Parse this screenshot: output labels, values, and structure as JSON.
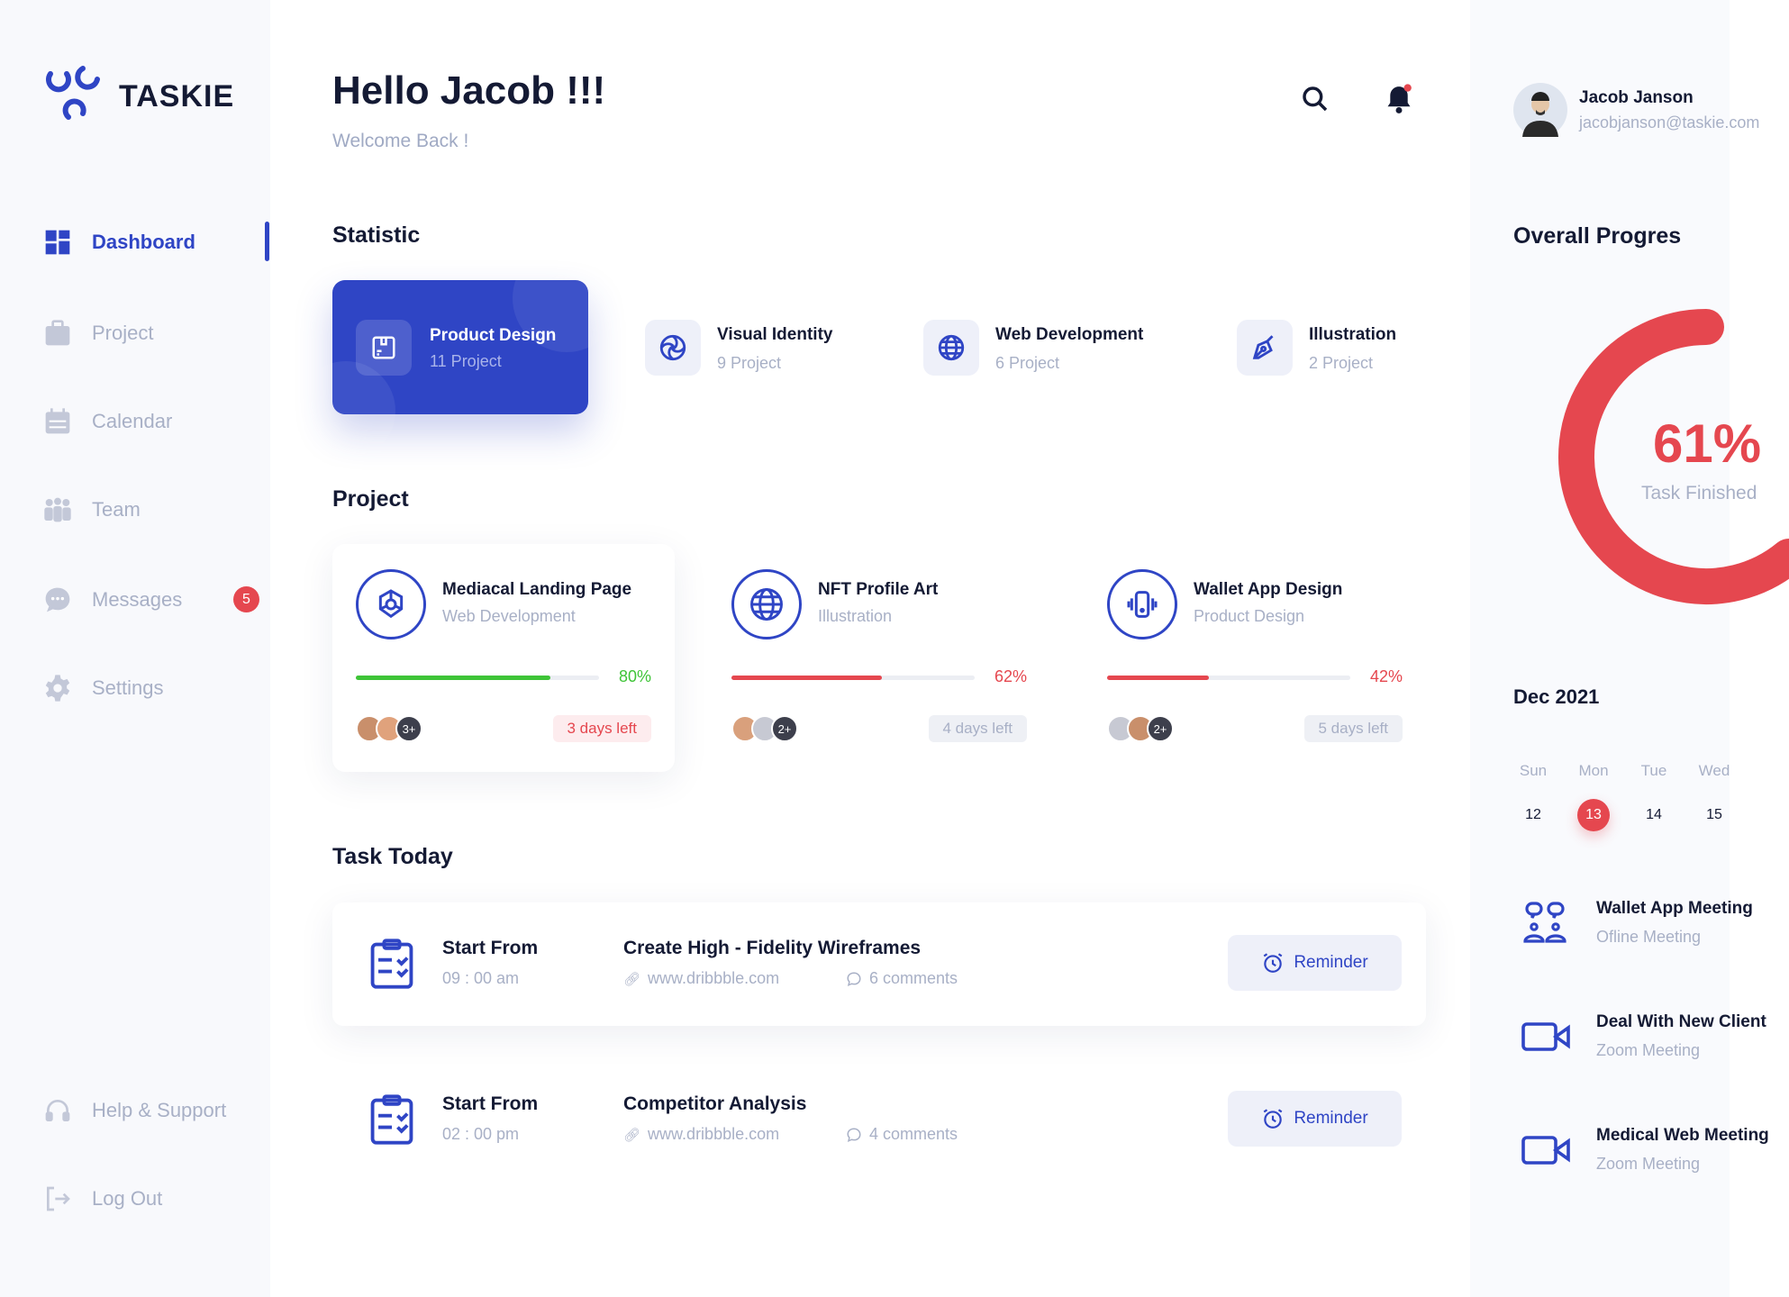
{
  "brand": {
    "name": "TASKIE",
    "accent": "#2f45c5"
  },
  "sidebar": {
    "items": [
      {
        "label": "Dashboard",
        "icon": "grid-icon",
        "active": true
      },
      {
        "label": "Project",
        "icon": "briefcase-icon"
      },
      {
        "label": "Calendar",
        "icon": "calendar-icon"
      },
      {
        "label": "Team",
        "icon": "team-icon"
      },
      {
        "label": "Messages",
        "icon": "chat-icon",
        "badge": "5"
      },
      {
        "label": "Settings",
        "icon": "gear-icon"
      }
    ],
    "bottom": [
      {
        "label": "Help & Support",
        "icon": "headset-icon"
      },
      {
        "label": "Log Out",
        "icon": "logout-icon"
      }
    ]
  },
  "header": {
    "title": "Hello Jacob !!!",
    "subtitle": "Welcome Back !"
  },
  "user": {
    "name": "Jacob Janson",
    "email": "jacobjanson@taskie.com"
  },
  "statistic": {
    "title": "Statistic",
    "items": [
      {
        "title": "Product Design",
        "count": "11 Project",
        "icon": "package-icon"
      },
      {
        "title": "Visual Identity",
        "count": "9 Project",
        "icon": "aperture-icon"
      },
      {
        "title": "Web Development",
        "count": "6 Project",
        "icon": "globe-icon"
      },
      {
        "title": "Illustration",
        "count": "2 Project",
        "icon": "pen-tool-icon"
      }
    ]
  },
  "projects": {
    "title": "Project",
    "items": [
      {
        "title": "Mediacal Landing Page",
        "category": "Web Development",
        "progress": 80,
        "progress_label": "80%",
        "color": "#3ec437",
        "extra": "3+",
        "days": "3 days left"
      },
      {
        "title": "NFT Profile Art",
        "category": "Illustration",
        "progress": 62,
        "progress_label": "62%",
        "color": "#e5474f",
        "extra": "2+",
        "days": "4 days left"
      },
      {
        "title": "Wallet App Design",
        "category": "Product Design",
        "progress": 42,
        "progress_label": "42%",
        "color": "#e5474f",
        "extra": "2+",
        "days": "5 days left"
      }
    ]
  },
  "tasks": {
    "title": "Task Today",
    "items": [
      {
        "label": "Start From",
        "time": "09 : 00 am",
        "title": "Create High - Fidelity Wireframes",
        "link": "www.dribbble.com",
        "comments": "6 comments",
        "button": "Reminder"
      },
      {
        "label": "Start From",
        "time": "02 : 00 pm",
        "title": "Competitor Analysis",
        "link": "www.dribbble.com",
        "comments": "4 comments",
        "button": "Reminder"
      }
    ]
  },
  "overall": {
    "title": "Overall Progres",
    "value": 61,
    "value_label": "61%",
    "caption": "Task Finished",
    "color": "#e5474f"
  },
  "calendar": {
    "month": "Dec 2021",
    "days": [
      {
        "name": "Sun",
        "num": "12"
      },
      {
        "name": "Mon",
        "num": "13",
        "selected": true
      },
      {
        "name": "Tue",
        "num": "14"
      },
      {
        "name": "Wed",
        "num": "15"
      }
    ]
  },
  "meetings": [
    {
      "title": "Wallet App Meeting",
      "type": "Ofline Meeting",
      "icon": "people-chat-icon"
    },
    {
      "title": "Deal With New Client",
      "type": "Zoom Meeting",
      "icon": "video-icon"
    },
    {
      "title": "Medical Web Meeting",
      "type": "Zoom Meeting",
      "icon": "video-icon"
    }
  ]
}
